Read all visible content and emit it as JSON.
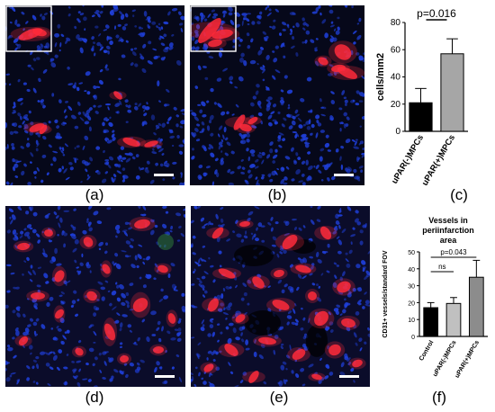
{
  "panels": {
    "a": {
      "label": "(a)"
    },
    "b": {
      "label": "(b)"
    },
    "c": {
      "label": "(c)"
    },
    "d": {
      "label": "(d)"
    },
    "e": {
      "label": "(e)"
    },
    "f": {
      "label": "(f)"
    }
  },
  "colors": {
    "nuclei": "#1f3fd9",
    "stain": "#ff2a3a",
    "background": "#06081a",
    "scale_bar": "#ffffff"
  },
  "chart_data": [
    {
      "type": "bar",
      "panel": "c",
      "title": "",
      "ylabel": "cells/mm2",
      "xlabel": "",
      "categories": [
        "uPAR(-)MPCs",
        "uPAR(+)MPCs"
      ],
      "values": [
        21,
        57
      ],
      "errors": [
        10.5,
        11
      ],
      "colors": [
        "#000000",
        "#a6a6a6"
      ],
      "ylim": [
        0,
        80
      ],
      "yticks": [
        0,
        20,
        40,
        60,
        80
      ],
      "annotations": [
        {
          "text": "p=0.016",
          "from": 0,
          "to": 1
        }
      ]
    },
    {
      "type": "bar",
      "panel": "f",
      "title": "Vessels in periinfarction area",
      "title_lines": [
        "Vessels in",
        "periinfarction",
        "area"
      ],
      "ylabel": "CD31+ vessels/standard FOV",
      "xlabel": "",
      "categories": [
        "Control",
        "uPAR(-)MPCs",
        "uPAR(+)MPCs"
      ],
      "values": [
        17,
        19.5,
        35
      ],
      "errors": [
        3,
        3.5,
        10
      ],
      "colors": [
        "#000000",
        "#c0c0c0",
        "#8c8c8c"
      ],
      "ylim": [
        0,
        50
      ],
      "yticks": [
        0,
        10,
        20,
        30,
        40,
        50
      ],
      "annotations": [
        {
          "text": "ns",
          "from": 0,
          "to": 1
        },
        {
          "text": "p=0.043",
          "from": 0,
          "to": 2
        }
      ]
    }
  ]
}
